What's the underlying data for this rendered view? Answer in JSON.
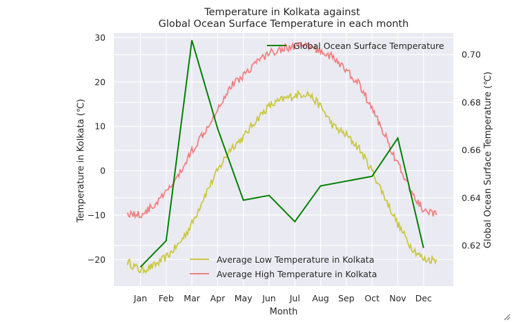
{
  "chart_data": {
    "type": "line",
    "title": "Temperature in Kolkata against\nGlobal Ocean Surface Temperature in each month",
    "xlabel": "Month",
    "ylabel_left": "Temperature in Kolkata (℃)",
    "ylabel_right": "Global Ocean Surface Temperature (℃)",
    "x_categories": [
      "Jan",
      "Feb",
      "Mar",
      "Apr",
      "May",
      "Jun",
      "Jul",
      "Aug",
      "Sep",
      "Oct",
      "Nov",
      "Dec"
    ],
    "ylim_left": [
      -26,
      31
    ],
    "yticks_left": [
      -20,
      -10,
      0,
      10,
      20,
      30
    ],
    "ylim_right": [
      0.603,
      0.709
    ],
    "yticks_right": [
      0.62,
      0.64,
      0.66,
      0.68,
      0.7
    ],
    "grid": true,
    "series_right": [
      {
        "name": "Global Ocean Surface Temperature",
        "color": "#008000",
        "x": [
          1,
          2,
          3,
          4,
          5,
          6,
          7,
          8,
          9,
          10,
          11,
          12
        ],
        "values": [
          0.611,
          0.622,
          0.706,
          0.669,
          0.639,
          0.641,
          0.63,
          0.645,
          0.647,
          0.649,
          0.665,
          0.619
        ]
      }
    ],
    "series_left": [
      {
        "name": "Average Low Temperature in Kolkata",
        "color": "#c9c93f",
        "x": [
          0.5,
          1,
          1.5,
          2,
          2.5,
          3,
          3.5,
          4,
          4.5,
          5,
          5.5,
          6,
          6.5,
          7,
          7.5,
          8,
          8.5,
          9,
          9.5,
          10,
          10.5,
          11,
          11.5,
          12,
          12.5
        ],
        "values": [
          -20.5,
          -22.5,
          -21.5,
          -19.5,
          -16.5,
          -12.0,
          -5.5,
          0.0,
          5.0,
          7.5,
          11.5,
          14.5,
          16.0,
          17.0,
          17.5,
          14.5,
          10.0,
          8.0,
          5.0,
          0.0,
          -6.0,
          -12.0,
          -17.0,
          -20.0,
          -20.0
        ]
      },
      {
        "name": "Average High Temperature in Kolkata",
        "color": "#f08080",
        "x": [
          0.5,
          1,
          1.5,
          2,
          2.5,
          3,
          3.5,
          4,
          4.5,
          5,
          5.5,
          6,
          6.5,
          7,
          7.5,
          8,
          8.5,
          9,
          9.5,
          10,
          10.5,
          11,
          11.5,
          12,
          12.5
        ],
        "values": [
          -9.5,
          -10.0,
          -8.0,
          -5.0,
          -1.0,
          4.5,
          9.0,
          14.0,
          19.0,
          21.5,
          24.5,
          26.5,
          27.5,
          28.0,
          28.0,
          27.0,
          25.5,
          22.5,
          19.5,
          14.0,
          8.0,
          1.5,
          -4.5,
          -9.0,
          -10.0
        ]
      }
    ],
    "legend_right_axis": "top-right",
    "legend_left_axis": "lower-center"
  }
}
